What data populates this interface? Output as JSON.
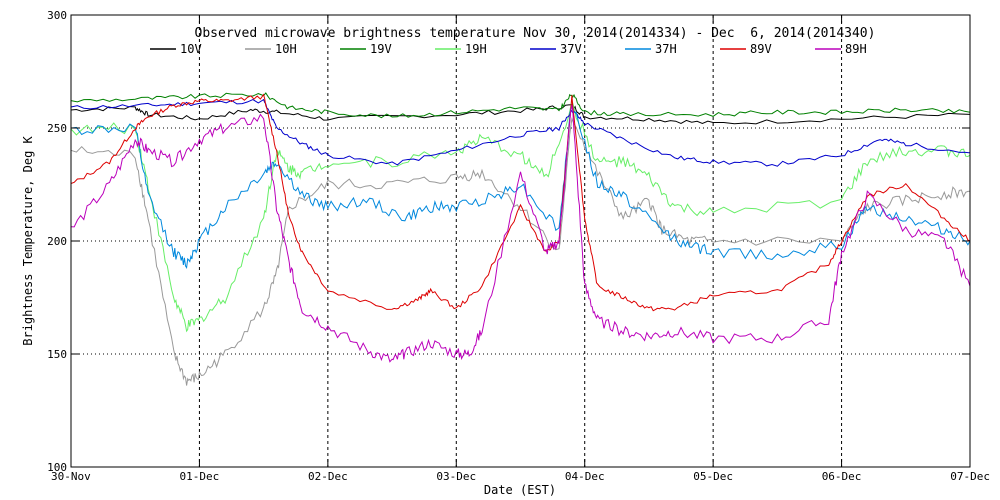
{
  "chart_data": {
    "type": "line",
    "title": "Observed microwave brightness temperature Nov 30, 2014(2014334) - Dec  6, 2014(2014340)",
    "xlabel": "Date (EST)",
    "ylabel": "Brightness Temperature, Deg K",
    "ylim": [
      100,
      300
    ],
    "xlim": [
      0,
      7
    ],
    "y_ticks": [
      {
        "value": 100,
        "label": "100"
      },
      {
        "value": 150,
        "label": "150"
      },
      {
        "value": 200,
        "label": "200"
      },
      {
        "value": 250,
        "label": "250"
      },
      {
        "value": 300,
        "label": "300"
      }
    ],
    "x_ticks": [
      {
        "value": 0,
        "label": "30-Nov"
      },
      {
        "value": 1,
        "label": "01-Dec"
      },
      {
        "value": 2,
        "label": "02-Dec"
      },
      {
        "value": 3,
        "label": "03-Dec"
      },
      {
        "value": 4,
        "label": "04-Dec"
      },
      {
        "value": 5,
        "label": "05-Dec"
      },
      {
        "value": 6,
        "label": "06-Dec"
      },
      {
        "value": 7,
        "label": "07-Dec"
      }
    ],
    "grid": "dotted at major ticks",
    "legend_position": "top",
    "x_unit": "days since 30-Nov 00:00",
    "series": [
      {
        "name": "10V",
        "color": "#000000",
        "x": [
          0,
          0.5,
          0.6,
          1.0,
          1.4,
          1.6,
          2.0,
          3.0,
          3.6,
          3.9,
          4.0,
          4.5,
          5.0,
          6.0,
          7.0
        ],
        "y": [
          258,
          259,
          256,
          254,
          258,
          257,
          254,
          256,
          258,
          260,
          255,
          254,
          252,
          254,
          256
        ]
      },
      {
        "name": "10H",
        "color": "#999999",
        "x": [
          0,
          0.5,
          0.6,
          0.8,
          0.9,
          1.0,
          1.2,
          1.5,
          1.6,
          1.7,
          2.0,
          2.5,
          3.0,
          3.2,
          3.5,
          3.8,
          3.9,
          4.1,
          4.3,
          4.5,
          4.6,
          4.8,
          5.0,
          6.0,
          6.2,
          6.5,
          6.8,
          7.0
        ],
        "y": [
          240,
          238,
          210,
          150,
          138,
          140,
          150,
          170,
          185,
          215,
          225,
          225,
          228,
          230,
          215,
          195,
          255,
          230,
          210,
          218,
          205,
          200,
          200,
          200,
          215,
          218,
          221,
          222
        ]
      },
      {
        "name": "19V",
        "color": "#008000",
        "x": [
          0,
          0.6,
          1.0,
          1.5,
          1.7,
          2.0,
          2.5,
          3.0,
          3.5,
          3.8,
          3.9,
          4.0,
          4.3,
          5.0,
          5.5,
          6.0,
          6.5,
          7.0
        ],
        "y": [
          262,
          263,
          264,
          265,
          259,
          257,
          255,
          257,
          259,
          258,
          265,
          257,
          256,
          256,
          257,
          257,
          258,
          257
        ]
      },
      {
        "name": "19H",
        "color": "#66ee66",
        "x": [
          0,
          0.5,
          0.6,
          0.8,
          0.9,
          1.0,
          1.2,
          1.5,
          1.6,
          1.7,
          1.8,
          2.0,
          2.5,
          3.0,
          3.2,
          3.5,
          3.7,
          3.9,
          4.1,
          4.3,
          4.5,
          4.7,
          5.0,
          6.0,
          6.2,
          6.5,
          6.8,
          7.0
        ],
        "y": [
          249,
          250,
          225,
          175,
          162,
          165,
          175,
          210,
          240,
          232,
          230,
          235,
          235,
          240,
          245,
          238,
          228,
          260,
          235,
          235,
          228,
          215,
          212,
          218,
          235,
          240,
          240,
          238
        ]
      },
      {
        "name": "37V",
        "color": "#0000cc",
        "x": [
          0,
          0.6,
          1.0,
          1.5,
          1.6,
          1.8,
          2.0,
          2.5,
          3.0,
          3.5,
          3.8,
          3.9,
          4.0,
          4.3,
          4.7,
          5.0,
          5.5,
          6.0,
          6.3,
          6.5,
          7.0
        ],
        "y": [
          259,
          260,
          261,
          262,
          250,
          243,
          238,
          234,
          240,
          247,
          250,
          258,
          252,
          245,
          237,
          235,
          234,
          238,
          245,
          243,
          239
        ]
      },
      {
        "name": "37H",
        "color": "#0088dd",
        "x": [
          0,
          0.5,
          0.6,
          0.8,
          0.9,
          1.0,
          1.2,
          1.5,
          1.6,
          1.8,
          2.0,
          2.3,
          2.6,
          2.8,
          3.0,
          3.3,
          3.5,
          3.8,
          3.9,
          4.1,
          4.3,
          4.6,
          4.8,
          5.0,
          5.5,
          6.0,
          6.2,
          6.5,
          6.8,
          7.0
        ],
        "y": [
          249,
          250,
          220,
          195,
          190,
          200,
          215,
          230,
          235,
          220,
          215,
          218,
          210,
          215,
          215,
          220,
          225,
          205,
          262,
          225,
          220,
          205,
          198,
          195,
          194,
          198,
          215,
          210,
          205,
          200
        ]
      },
      {
        "name": "89V",
        "color": "#dd0000",
        "x": [
          0,
          0.3,
          0.5,
          0.6,
          0.8,
          1.0,
          1.2,
          1.5,
          1.6,
          1.7,
          1.8,
          2.0,
          2.5,
          2.7,
          2.8,
          3.0,
          3.2,
          3.5,
          3.7,
          3.8,
          3.9,
          4.0,
          4.1,
          4.3,
          4.5,
          4.7,
          5.0,
          5.5,
          5.9,
          6.0,
          6.2,
          6.5,
          6.8,
          7.0
        ],
        "y": [
          225,
          235,
          250,
          255,
          260,
          262,
          262,
          264,
          240,
          210,
          195,
          178,
          170,
          174,
          178,
          170,
          180,
          215,
          195,
          200,
          264,
          210,
          180,
          175,
          170,
          170,
          176,
          178,
          190,
          200,
          220,
          225,
          210,
          200
        ]
      },
      {
        "name": "89H",
        "color": "#bb00bb",
        "x": [
          0,
          0.3,
          0.5,
          0.6,
          0.8,
          1.0,
          1.2,
          1.5,
          1.6,
          1.7,
          1.8,
          2.0,
          2.3,
          2.5,
          2.6,
          2.8,
          3.0,
          3.1,
          3.2,
          3.5,
          3.7,
          3.8,
          3.9,
          4.0,
          4.1,
          4.3,
          4.5,
          4.7,
          5.0,
          5.5,
          5.9,
          6.0,
          6.2,
          6.5,
          6.8,
          7.0
        ],
        "y": [
          205,
          225,
          245,
          240,
          235,
          245,
          250,
          255,
          215,
          190,
          170,
          162,
          152,
          147,
          150,
          155,
          150,
          150,
          160,
          230,
          195,
          200,
          262,
          180,
          165,
          160,
          158,
          160,
          157,
          157,
          165,
          195,
          220,
          205,
          200,
          180
        ]
      }
    ]
  }
}
